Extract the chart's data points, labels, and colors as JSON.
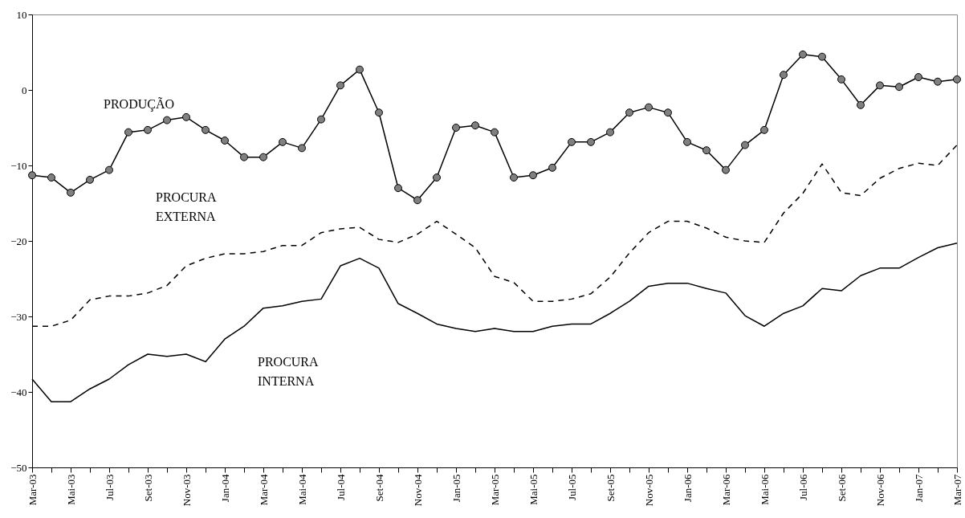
{
  "chart_data": {
    "type": "line",
    "categories": [
      "Mar-03",
      null,
      "Mai-03",
      null,
      "Jul-03",
      null,
      "Set-03",
      null,
      "Nov-03",
      null,
      "Jan-04",
      null,
      "Mar-04",
      null,
      "Mai-04",
      null,
      "Jul-04",
      null,
      "Set-04",
      null,
      "Nov-04",
      null,
      "Jan-05",
      null,
      "Mar-05",
      null,
      "Mai-05",
      null,
      "Jul-05",
      null,
      "Set-05",
      null,
      "Nov-05",
      null,
      "Jan-06",
      null,
      "Mar-06",
      null,
      "Mai-06",
      null,
      "Jul-06",
      null,
      "Set-06",
      null,
      "Nov-06",
      null,
      "Jan-07",
      null,
      "Mar-07"
    ],
    "ylim": [
      -50,
      10
    ],
    "yticks": [
      -50,
      -40,
      -30,
      -20,
      -10,
      0,
      10
    ],
    "grid": false,
    "series": [
      {
        "name": "PRODUÇÃO",
        "color": "#000000",
        "marker": "circle",
        "line_style": "solid",
        "values": [
          -11.3,
          -11.6,
          -13.6,
          -11.9,
          -10.6,
          -5.6,
          -5.3,
          -4.0,
          -3.6,
          -5.3,
          -6.7,
          -8.9,
          -8.9,
          -6.9,
          -7.7,
          -3.9,
          0.6,
          2.7,
          -3.0,
          -13.0,
          -14.6,
          -11.6,
          -5.0,
          -4.7,
          -5.6,
          -11.6,
          -11.3,
          -10.3,
          -6.9,
          -6.9,
          -5.6,
          -3.0,
          -2.3,
          -3.0,
          -6.9,
          -8.0,
          -10.6,
          -7.3,
          -5.3,
          2.0,
          4.7,
          4.4,
          1.4,
          -2.0,
          0.6,
          0.4,
          1.7,
          1.1,
          1.4
        ]
      },
      {
        "name": "PROCURA EXTERNA",
        "color": "#000000",
        "marker": "none",
        "line_style": "dashed",
        "values": [
          -31.3,
          -31.3,
          -30.5,
          -27.8,
          -27.3,
          -27.3,
          -26.9,
          -25.9,
          -23.3,
          -22.3,
          -21.7,
          -21.7,
          -21.4,
          -20.6,
          -20.6,
          -18.9,
          -18.4,
          -18.2,
          -19.8,
          -20.2,
          -19.1,
          -17.4,
          -19.1,
          -20.9,
          -24.7,
          -25.5,
          -28.0,
          -28.0,
          -27.7,
          -27.0,
          -24.8,
          -21.6,
          -18.9,
          -17.4,
          -17.4,
          -18.3,
          -19.5,
          -20.0,
          -20.2,
          -16.3,
          -13.7,
          -9.8,
          -13.6,
          -14.0,
          -11.7,
          -10.4,
          -9.7,
          -10.0,
          -7.3
        ]
      },
      {
        "name": "PROCURA INTERNA",
        "color": "#000000",
        "marker": "none",
        "line_style": "solid",
        "values": [
          -38.3,
          -41.3,
          -41.3,
          -39.6,
          -38.3,
          -36.4,
          -35.0,
          -35.3,
          -35.0,
          -36.0,
          -33.0,
          -31.3,
          -28.9,
          -28.6,
          -28.0,
          -27.7,
          -23.3,
          -22.3,
          -23.6,
          -28.3,
          -29.6,
          -31.0,
          -31.6,
          -32.0,
          -31.6,
          -32.0,
          -32.0,
          -31.3,
          -31.0,
          -31.0,
          -29.6,
          -28.0,
          -26.0,
          -25.6,
          -25.6,
          -26.3,
          -26.9,
          -29.9,
          -31.3,
          -29.6,
          -28.6,
          -26.3,
          -26.6,
          -24.6,
          -23.6,
          -23.6,
          -22.2,
          -20.9,
          -20.3
        ]
      }
    ]
  }
}
